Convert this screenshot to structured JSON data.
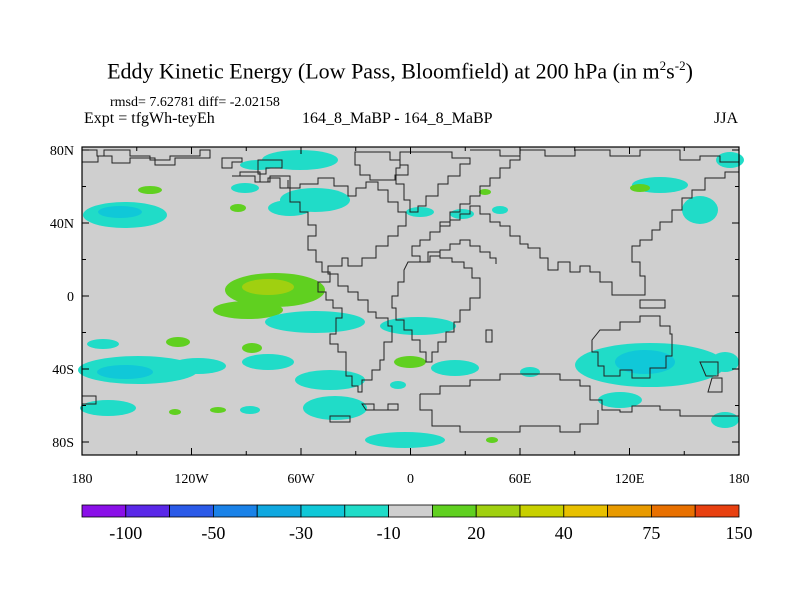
{
  "title": {
    "main": "Eddy Kinetic Energy (Low Pass, Bloomfield) at 200 hPa (in m",
    "exp1": "2",
    "mid": "s",
    "exp2": "-2",
    "close": ")"
  },
  "stats": {
    "rmsd": "rmsd= 7.62781  diff= -2.02158",
    "expt": "Expt = tfgWh-teyEh",
    "case": "164_8_MaBP - 164_8_MaBP",
    "season": "JJA"
  },
  "axes": {
    "lat_ticks": [
      {
        "label": "80N",
        "value": 80
      },
      {
        "label": "40N",
        "value": 40
      },
      {
        "label": "0",
        "value": 0
      },
      {
        "label": "40S",
        "value": -40
      },
      {
        "label": "80S",
        "value": -80
      }
    ],
    "lon_ticks": [
      {
        "label": "180",
        "value": -180
      },
      {
        "label": "120W",
        "value": -120
      },
      {
        "label": "60W",
        "value": -60
      },
      {
        "label": "0",
        "value": 0
      },
      {
        "label": "60E",
        "value": 60
      },
      {
        "label": "120E",
        "value": 120
      },
      {
        "label": "180",
        "value": 180
      }
    ]
  },
  "colorbar": {
    "colors": [
      "#8a10e8",
      "#5a28e8",
      "#2a5ae8",
      "#1a82e8",
      "#10a8e0",
      "#10c8d8",
      "#20dcc8",
      "#cfcfcf",
      "#60d020",
      "#a0d010",
      "#c8d000",
      "#e8c000",
      "#e89a00",
      "#e87000",
      "#e84010"
    ],
    "labels": [
      {
        "text": "-100",
        "index": 1
      },
      {
        "text": "-50",
        "index": 3
      },
      {
        "text": "-30",
        "index": 5
      },
      {
        "text": "-10",
        "index": 7
      },
      {
        "text": "20",
        "index": 9
      },
      {
        "text": "40",
        "index": 11
      },
      {
        "text": "75",
        "index": 13
      },
      {
        "text": "150",
        "index": 15
      }
    ]
  },
  "field": {
    "background": "#cfcfcf",
    "cyan": "#20dcc8",
    "light_blue": "#10c8d8",
    "green": "#60d020",
    "yellow_green": "#a0d010"
  }
}
